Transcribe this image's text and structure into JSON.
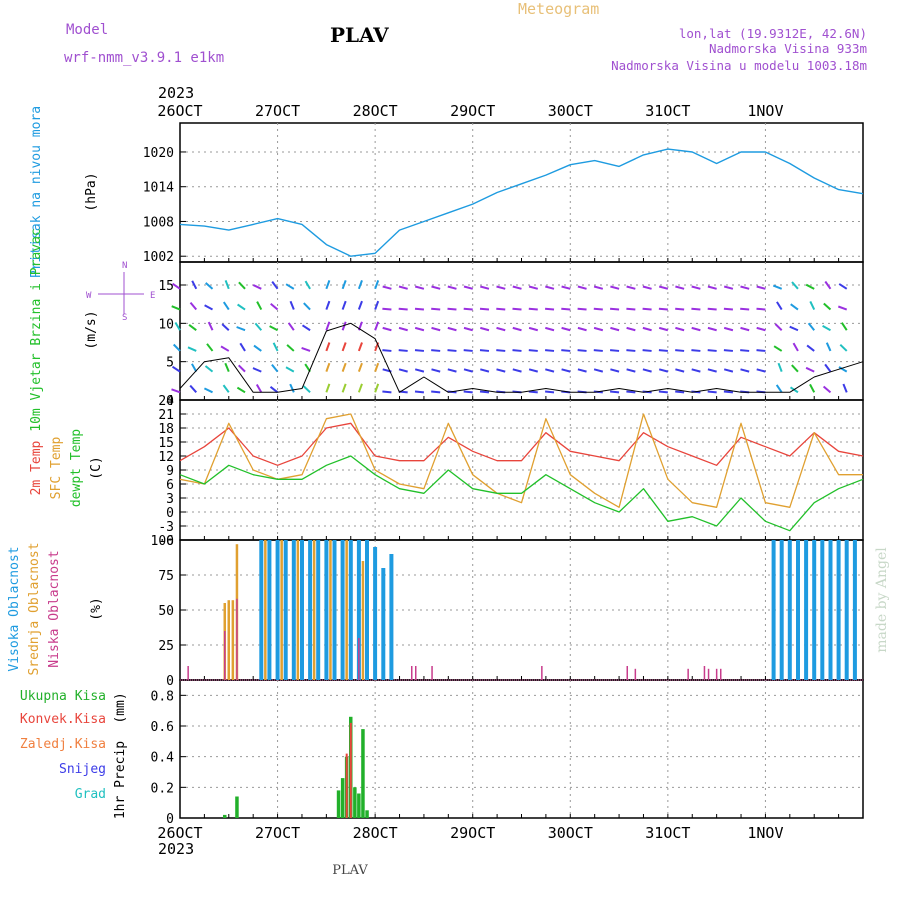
{
  "header": {
    "meteogram": "Meteogram",
    "model_label": "Model",
    "model_name": "wrf-nmm_v3.9.1 e1km",
    "station": "PLAV",
    "lonlat": "lon,lat (19.9312E, 42.6N)",
    "elevation": "Nadmorska Visina 933m",
    "model_elevation": "Nadmorska Visina u modelu 1003.18m",
    "year_top": "2023",
    "year_bottom": "2023",
    "footer": "PLAV",
    "watermark": "made by Angel"
  },
  "colors": {
    "pressure": "#1e9be0",
    "temp2m": "#e8453c",
    "sfc": "#e0a030",
    "dew": "#22c02a",
    "high_cloud": "#1e9be0",
    "mid_cloud": "#e0a030",
    "low_cloud": "#c83c8c",
    "total_precip": "#22b02a",
    "conv_precip": "#e8453c",
    "frz_precip": "#f08040",
    "snow": "#3c3ce8",
    "hail": "#20c0c0",
    "violet": "#a050d0"
  },
  "axis": {
    "date_ticks": [
      "26OCT",
      "27OCT",
      "28OCT",
      "29OCT",
      "30OCT",
      "31OCT",
      "1NOV"
    ]
  },
  "chart_data": [
    {
      "id": "pressure",
      "type": "line",
      "ylabel": "Pritisak na nivou mora",
      "unit": "(hPa)",
      "ylim": [
        1001,
        1025
      ],
      "yticks": [
        1002,
        1008,
        1014,
        1020
      ],
      "grid": true,
      "series": [
        {
          "x_hours": [
            0,
            6,
            12,
            18,
            24,
            30,
            36,
            42,
            48,
            54,
            60,
            66,
            72,
            78,
            84,
            90,
            96,
            102,
            108,
            114,
            120,
            126,
            132,
            138,
            144,
            150,
            156,
            162,
            168
          ],
          "values": [
            1007.5,
            1007.2,
            1006.5,
            1007.5,
            1008.5,
            1007.5,
            1004.0,
            1002.0,
            1002.5,
            1006.5,
            1008.0,
            1009.5,
            1011.0,
            1013.0,
            1014.5,
            1016.0,
            1017.8,
            1018.5,
            1017.5,
            1019.5,
            1020.5,
            1020.0,
            1018.0,
            1020.0,
            1020.0,
            1018.0,
            1015.5,
            1013.5,
            1012.8
          ]
        }
      ]
    },
    {
      "id": "wind",
      "type": "line",
      "ylabel": "10m Vjetar Brzina i Pravac",
      "unit": "(m/s)",
      "compass": [
        "N",
        "E",
        "S",
        "W"
      ],
      "ylim": [
        0,
        18
      ],
      "yticks": [
        0,
        5,
        10,
        15
      ],
      "grid": true,
      "series": [
        {
          "x_hours": [
            0,
            6,
            12,
            18,
            24,
            30,
            36,
            42,
            48,
            54,
            60,
            66,
            72,
            78,
            84,
            90,
            96,
            102,
            108,
            114,
            120,
            126,
            132,
            138,
            144,
            150,
            156,
            162,
            168
          ],
          "values": [
            1.5,
            5.0,
            5.5,
            1.0,
            1.0,
            1.5,
            9.0,
            10.0,
            8.0,
            1.0,
            3.0,
            1.0,
            1.5,
            1.0,
            1.0,
            1.5,
            1.0,
            1.0,
            1.5,
            1.0,
            1.5,
            1.0,
            1.5,
            1.0,
            1.0,
            1.0,
            3.0,
            4.0,
            5.0
          ]
        }
      ]
    },
    {
      "id": "temperature",
      "type": "line",
      "ylabels": [
        "2m Temp",
        "SFC Temp",
        "dewpt Temp"
      ],
      "unit": "(C)",
      "ylim": [
        -6,
        24
      ],
      "yticks": [
        -6,
        -3,
        0,
        3,
        6,
        9,
        12,
        15,
        18,
        21,
        24
      ],
      "grid": true,
      "x_hours": [
        0,
        6,
        12,
        18,
        24,
        30,
        36,
        42,
        48,
        54,
        60,
        66,
        72,
        78,
        84,
        90,
        96,
        102,
        108,
        114,
        120,
        126,
        132,
        138,
        144,
        150,
        156,
        162,
        168
      ],
      "series": [
        {
          "name": "2m Temp",
          "values": [
            11,
            14,
            18,
            12,
            10,
            12,
            18,
            19,
            12,
            11,
            11,
            16,
            13,
            11,
            11,
            17,
            13,
            12,
            11,
            17,
            14,
            12,
            10,
            16,
            14,
            12,
            17,
            13,
            12
          ]
        },
        {
          "name": "SFC Temp",
          "values": [
            7,
            6,
            19,
            9,
            7,
            8,
            20,
            21,
            9,
            6,
            5,
            19,
            8,
            4,
            2,
            20,
            8,
            4,
            1,
            21,
            7,
            2,
            1,
            19,
            2,
            1,
            17,
            8,
            8
          ]
        },
        {
          "name": "dewpt Temp",
          "values": [
            8,
            6,
            10,
            8,
            7,
            7,
            10,
            12,
            8,
            5,
            4,
            9,
            5,
            4,
            4,
            8,
            5,
            2,
            0,
            5,
            -2,
            -1,
            -3,
            3,
            -2,
            -4,
            2,
            5,
            7
          ]
        }
      ]
    },
    {
      "id": "cloud",
      "type": "bar",
      "ylabels": [
        "Visoka Oblacnost",
        "Srednja Oblacnost",
        "Niska Oblacnost"
      ],
      "unit": "(%)",
      "ylim": [
        0,
        100
      ],
      "yticks": [
        0,
        25,
        50,
        75,
        100
      ],
      "grid": true,
      "series": [
        {
          "name": "Visoka Oblacnost",
          "x_hours": [
            20,
            22,
            24,
            26,
            28,
            30,
            32,
            34,
            36,
            38,
            40,
            42,
            44,
            46,
            48,
            50,
            52,
            96,
            110,
            124,
            146,
            148,
            150,
            152,
            154,
            156,
            158,
            160,
            162,
            164,
            166
          ],
          "values": [
            100,
            100,
            100,
            100,
            100,
            100,
            100,
            100,
            100,
            100,
            100,
            100,
            100,
            100,
            95,
            80,
            90,
            0,
            0,
            0,
            100,
            100,
            100,
            100,
            100,
            100,
            100,
            100,
            100,
            100,
            100
          ]
        },
        {
          "name": "Srednja Oblacnost",
          "x_hours": [
            11,
            12,
            13,
            14,
            21,
            25,
            29,
            33,
            37,
            41,
            45
          ],
          "values": [
            55,
            57,
            57,
            97,
            100,
            100,
            100,
            100,
            100,
            100,
            85
          ]
        },
        {
          "name": "Niska Oblacnost",
          "x_hours": [
            2,
            11,
            14,
            44,
            57,
            58,
            62,
            89,
            110,
            112,
            125,
            129,
            130,
            132,
            133
          ],
          "values": [
            10,
            35,
            58,
            30,
            10,
            10,
            10,
            10,
            10,
            8,
            8,
            10,
            8,
            8,
            8
          ]
        }
      ]
    },
    {
      "id": "precip",
      "type": "bar",
      "ylabel": "1hr Precip",
      "unit": "(mm)",
      "legend": [
        "Ukupna Kisa",
        "Konvek.Kisa",
        "Zaledj.Kisa",
        "Snijeg",
        "Grad"
      ],
      "ylim": [
        0,
        0.9
      ],
      "yticks": [
        0,
        0.2,
        0.4,
        0.6,
        0.8
      ],
      "grid": true,
      "series": [
        {
          "name": "Ukupna Kisa",
          "x_hours": [
            11,
            14,
            39,
            40,
            41,
            42,
            43,
            44,
            45,
            46
          ],
          "values": [
            0.02,
            0.14,
            0.18,
            0.26,
            0.4,
            0.66,
            0.2,
            0.16,
            0.58,
            0.05
          ]
        },
        {
          "name": "Konvek.Kisa",
          "x_hours": [
            41,
            42
          ],
          "values": [
            0.42,
            0.62
          ]
        }
      ]
    }
  ]
}
